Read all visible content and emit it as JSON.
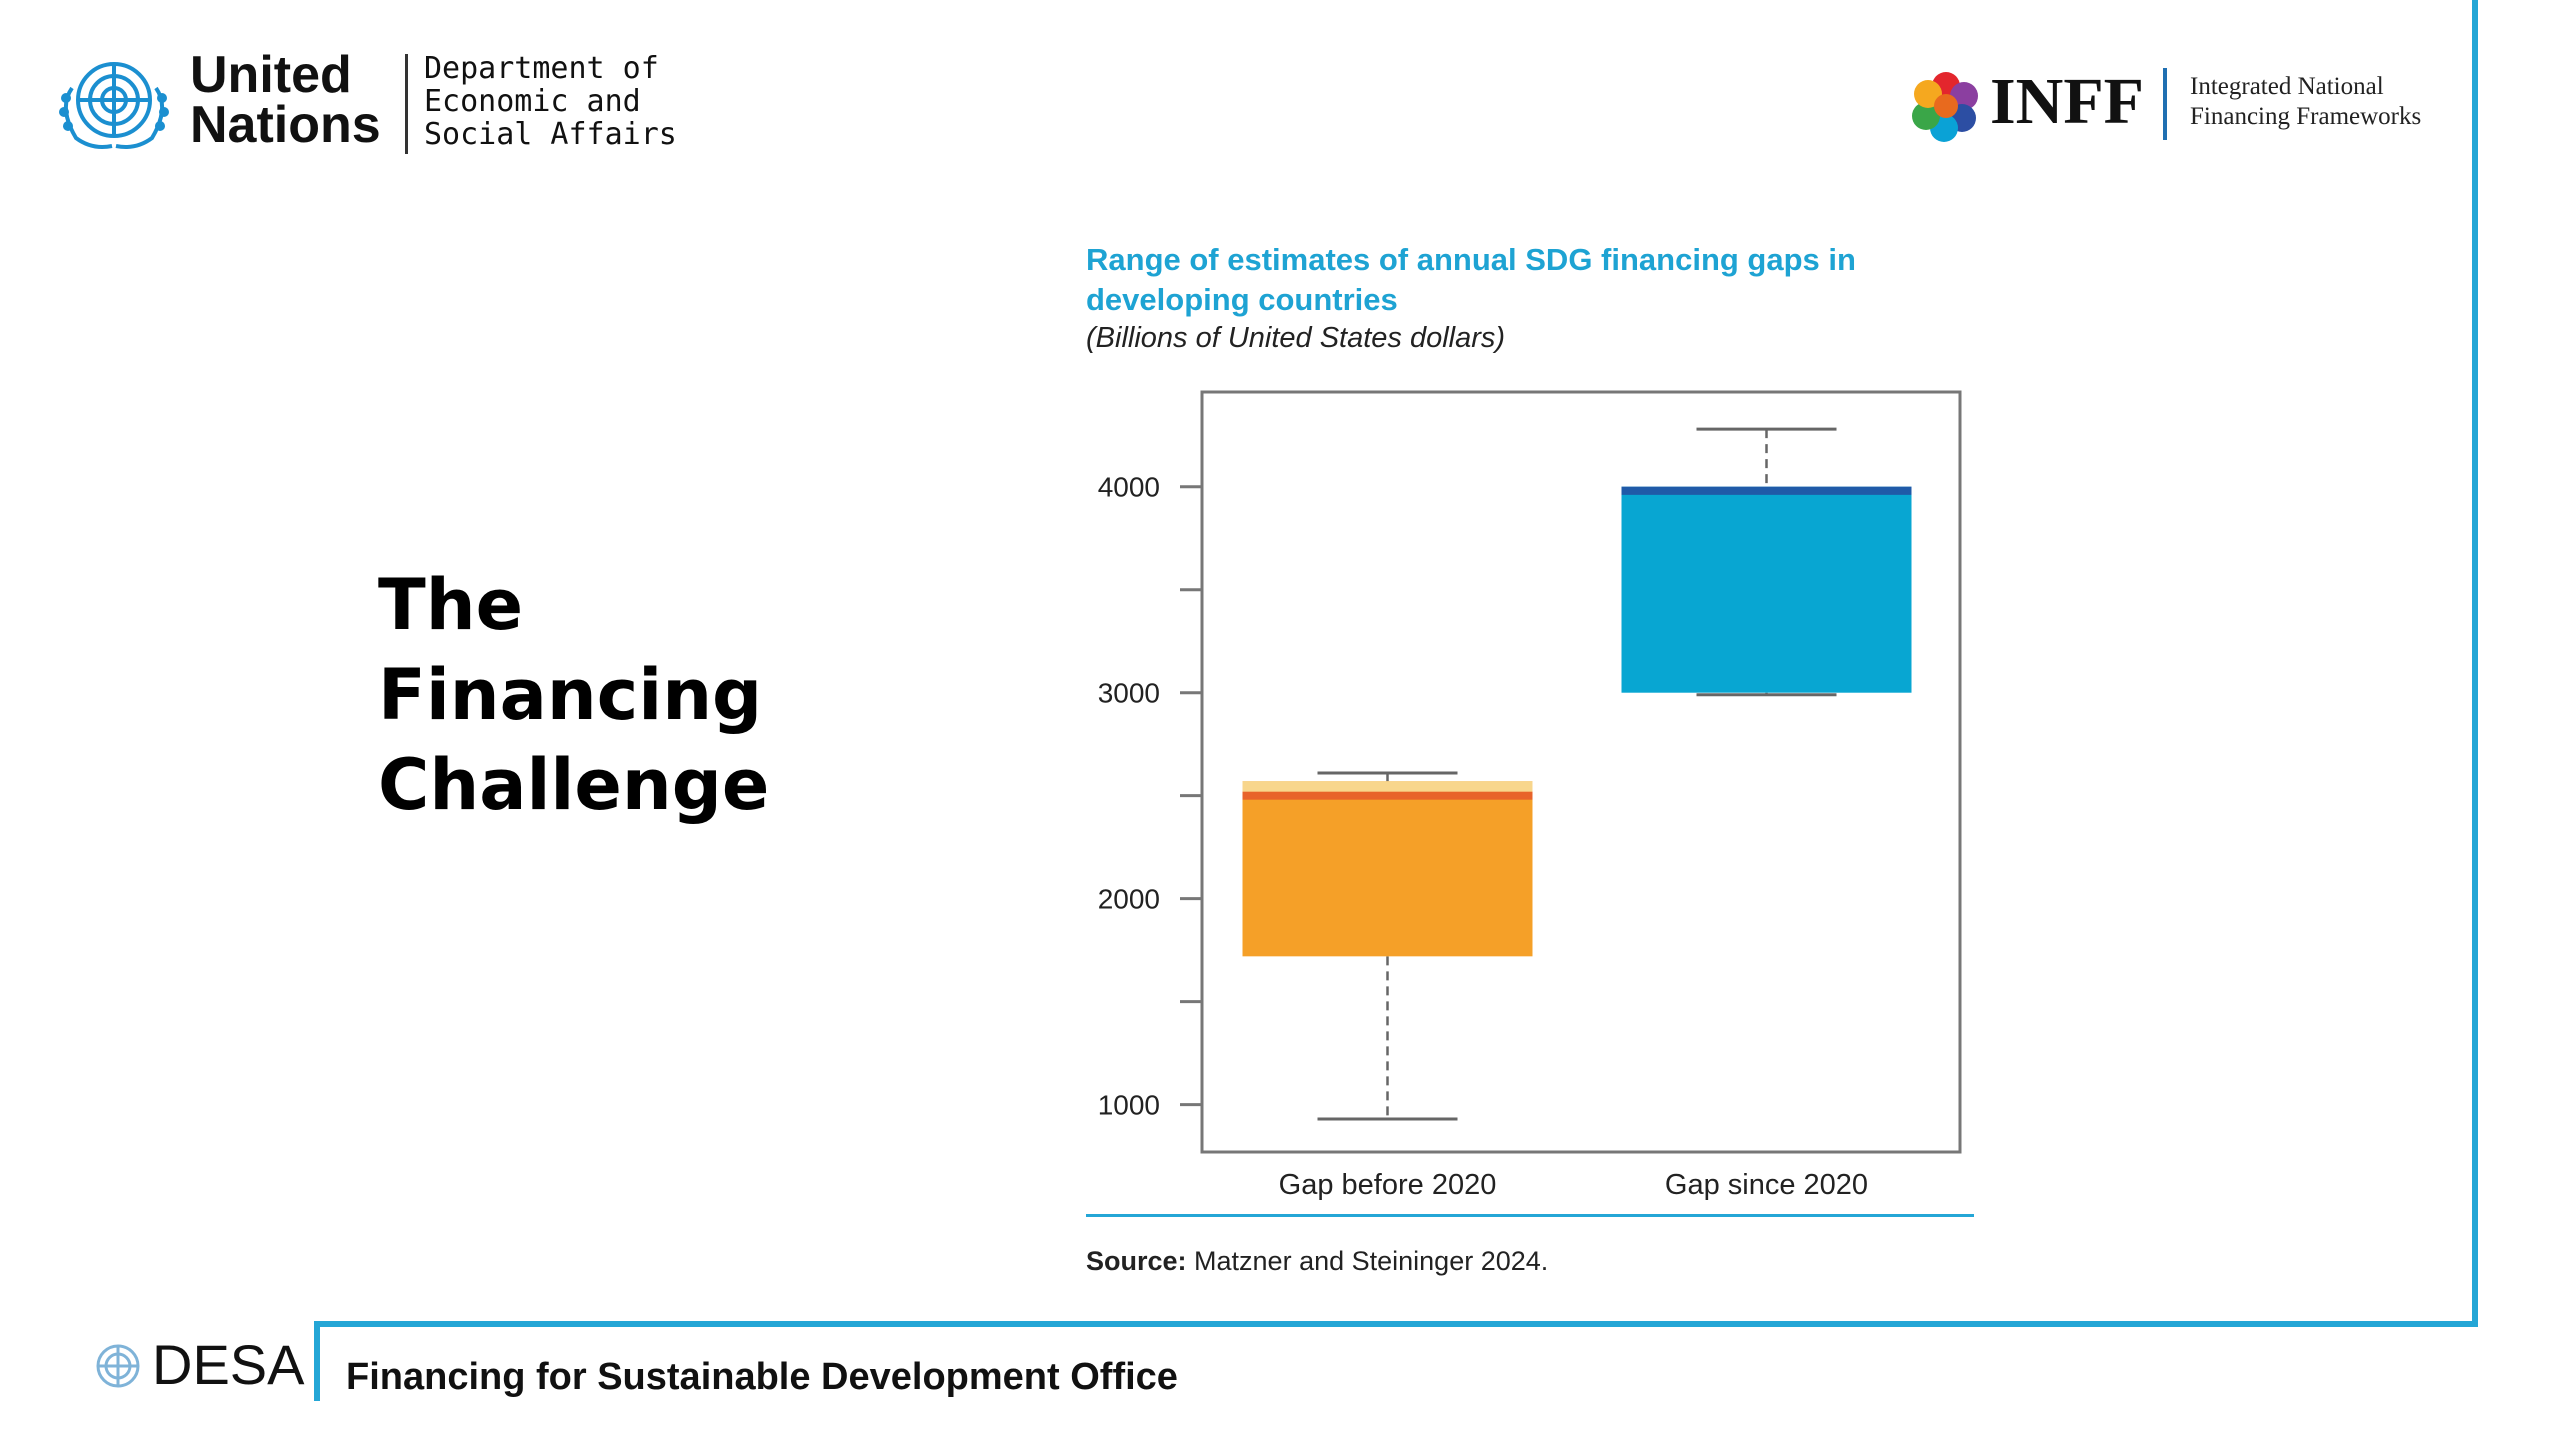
{
  "header": {
    "un_title_line1": "United",
    "un_title_line2": "Nations",
    "un_dept_line1": "Department of",
    "un_dept_line2": "Economic and",
    "un_dept_line3": "Social Affairs",
    "inff_title": "INFF",
    "inff_sub_line1": "Integrated National",
    "inff_sub_line2": "Financing Frameworks"
  },
  "slide": {
    "title_line1": "The",
    "title_line2": "Financing",
    "title_line3": "Challenge"
  },
  "chart_data": {
    "type": "box",
    "title": "Range of estimates of annual SDG financing gaps in developing countries",
    "subtitle": "(Billions of United States dollars)",
    "ylim": [
      770,
      4460
    ],
    "yticks_major": [
      1000,
      2000,
      3000,
      4000
    ],
    "yticks_minor": [
      1500,
      2500,
      3500
    ],
    "categories": [
      "Gap before 2020",
      "Gap since 2020"
    ],
    "boxes": [
      {
        "category": "Gap before 2020",
        "min": 930,
        "q1": 1720,
        "median": 2500,
        "q3": 2570,
        "max": 2610,
        "color": "#f5a028",
        "median_color": "#e8632a",
        "cap_color": "#f8d68c"
      },
      {
        "category": "Gap since 2020",
        "min": 2990,
        "q1": 3000,
        "median": 3980,
        "q3": 4000,
        "max": 4280,
        "color": "#08a6d2",
        "median_color": "#1f5aa8",
        "cap_color": "#1f5aa8"
      }
    ],
    "source_label": "Source:",
    "source_text": " Matzner and Steininger 2024."
  },
  "footer": {
    "desa": "DESA",
    "office": "Financing for Sustainable Development Office"
  },
  "colors": {
    "accent": "#24a6d6",
    "title_blue": "#1ea3d3"
  }
}
